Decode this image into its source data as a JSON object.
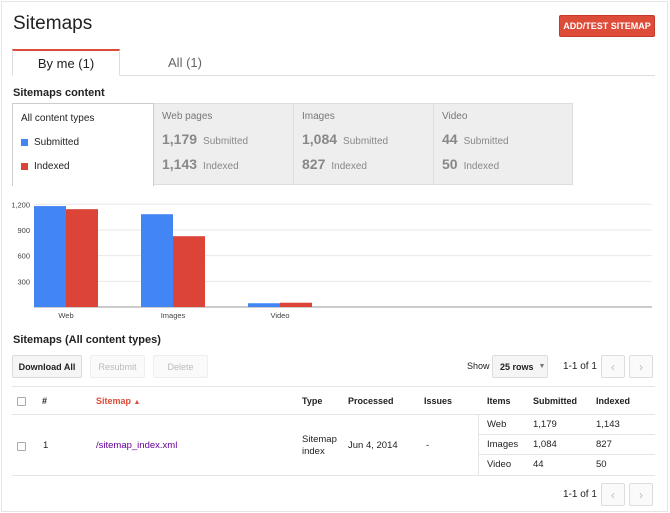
{
  "header": {
    "title": "Sitemaps",
    "add_button": "ADD/TEST SITEMAP"
  },
  "tabs": [
    {
      "label": "By me (1)",
      "active": true
    },
    {
      "label": "All (1)",
      "active": false
    }
  ],
  "content_section": {
    "label": "Sitemaps content",
    "first_col": {
      "label": "All content types",
      "legend": [
        {
          "label": "Submitted",
          "color": "#4285f4"
        },
        {
          "label": "Indexed",
          "color": "#db4437"
        }
      ]
    },
    "columns": [
      {
        "name": "Web pages",
        "submitted": "1,179",
        "submitted_label": "Submitted",
        "indexed": "1,143",
        "indexed_label": "Indexed"
      },
      {
        "name": "Images",
        "submitted": "1,084",
        "submitted_label": "Submitted",
        "indexed": "827",
        "indexed_label": "Indexed"
      },
      {
        "name": "Video",
        "submitted": "44",
        "submitted_label": "Submitted",
        "indexed": "50",
        "indexed_label": "Indexed"
      }
    ]
  },
  "chart_data": {
    "type": "bar",
    "categories": [
      "Web",
      "Images",
      "Video"
    ],
    "series": [
      {
        "name": "Submitted",
        "values": [
          1179,
          1084,
          44
        ],
        "color": "#4285f4"
      },
      {
        "name": "Indexed",
        "values": [
          1143,
          827,
          50
        ],
        "color": "#db4437"
      }
    ],
    "yticks": [
      "300",
      "600",
      "900",
      "1,200"
    ],
    "ytick_values": [
      300,
      600,
      900,
      1200
    ],
    "ylim": [
      0,
      1250
    ],
    "grid": true
  },
  "table_section": {
    "label": "Sitemaps (All content types)",
    "download": "Download All",
    "resubmit": "Resubmit",
    "delete": "Delete",
    "show_label": "Show",
    "rows_select": "25 rows",
    "pager": "1-1 of 1",
    "headers": {
      "num": "#",
      "sitemap": "Sitemap",
      "type": "Type",
      "processed": "Processed",
      "issues": "Issues",
      "items": "Items",
      "submitted": "Submitted",
      "indexed": "Indexed"
    },
    "row": {
      "num": "1",
      "sitemap": "/sitemap_index.xml",
      "type_line1": "Sitemap",
      "type_line2": "index",
      "processed": "Jun 4, 2014",
      "issues": "-",
      "items": [
        {
          "name": "Web",
          "submitted": "1,179",
          "indexed": "1,143"
        },
        {
          "name": "Images",
          "submitted": "1,084",
          "indexed": "827"
        },
        {
          "name": "Video",
          "submitted": "44",
          "indexed": "50"
        }
      ]
    },
    "pager_bottom": "1-1 of 1"
  }
}
